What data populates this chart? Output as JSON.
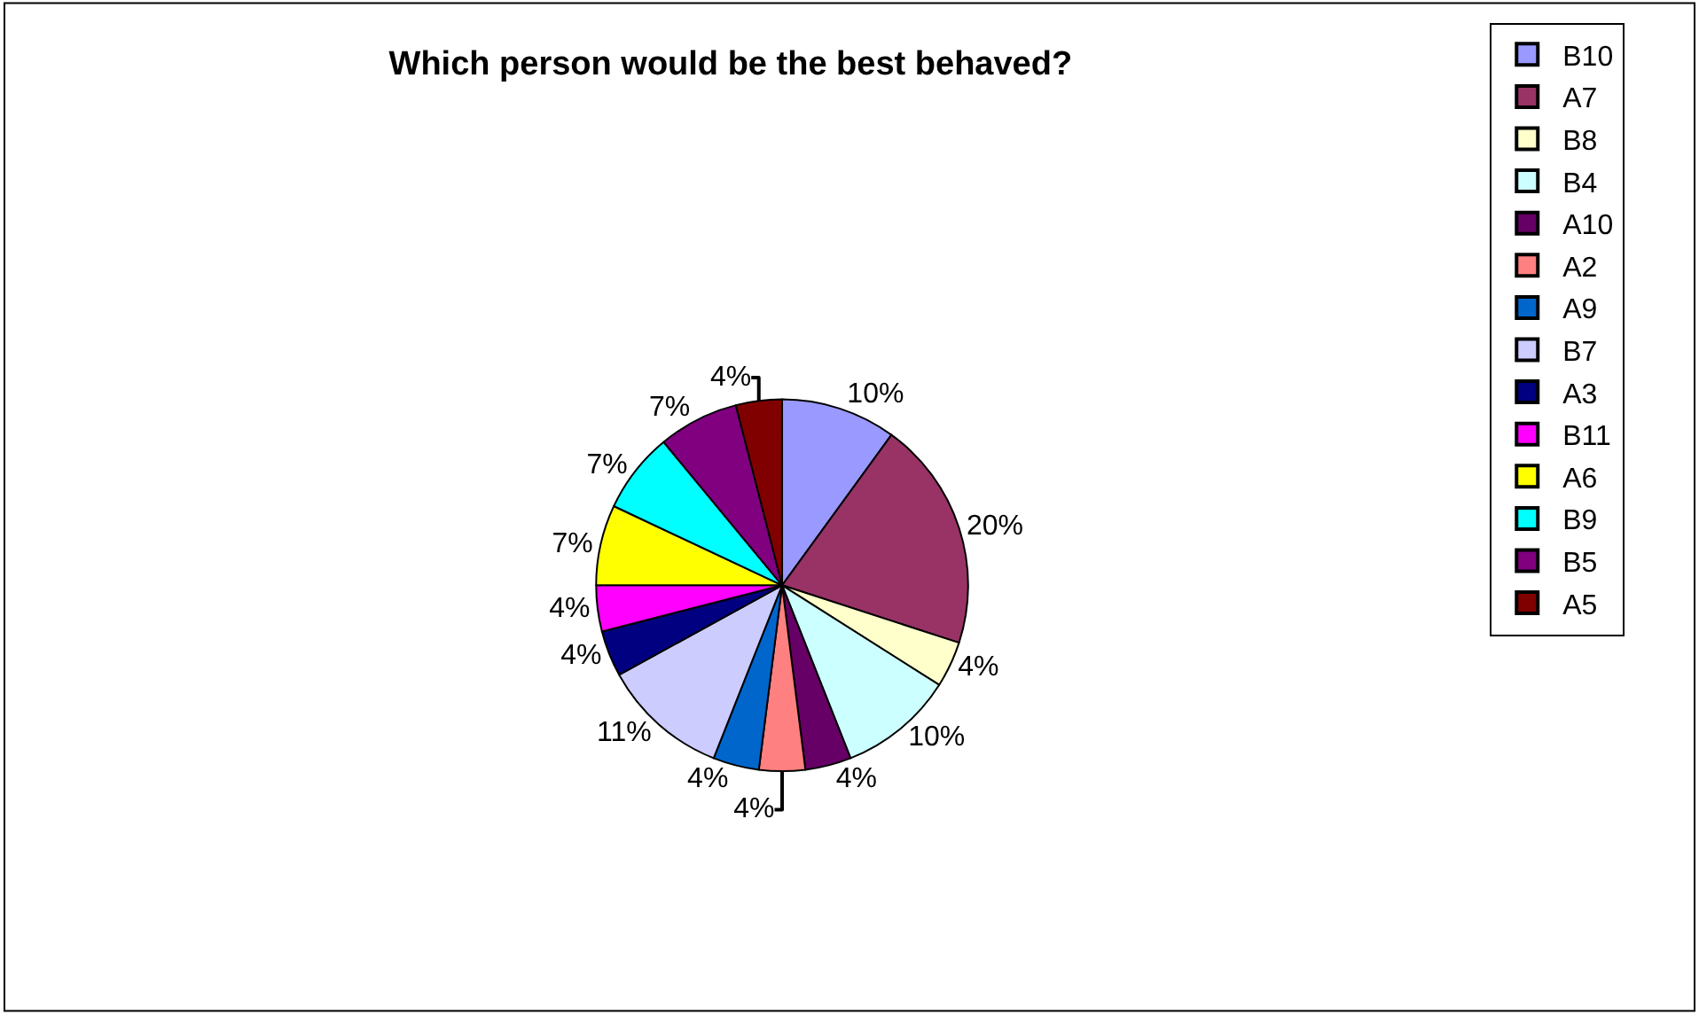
{
  "chart_data": {
    "type": "pie",
    "title": "Which person would be the best behaved?",
    "categories": [
      "B10",
      "A7",
      "B8",
      "B4",
      "A10",
      "A2",
      "A9",
      "B7",
      "A3",
      "B11",
      "A6",
      "B9",
      "B5",
      "A5"
    ],
    "values": [
      10,
      20,
      4,
      10,
      4,
      4,
      4,
      11,
      4,
      4,
      7,
      7,
      7,
      4
    ],
    "value_labels": [
      "10%",
      "20%",
      "4%",
      "10%",
      "4%",
      "4%",
      "4%",
      "11%",
      "4%",
      "4%",
      "7%",
      "7%",
      "7%",
      "4%"
    ],
    "colors": [
      "#9999ff",
      "#993366",
      "#ffffcc",
      "#ccffff",
      "#660066",
      "#ff8080",
      "#0066cc",
      "#ccccff",
      "#000080",
      "#ff00ff",
      "#ffff00",
      "#00ffff",
      "#800080",
      "#800000"
    ],
    "legend": "right"
  }
}
